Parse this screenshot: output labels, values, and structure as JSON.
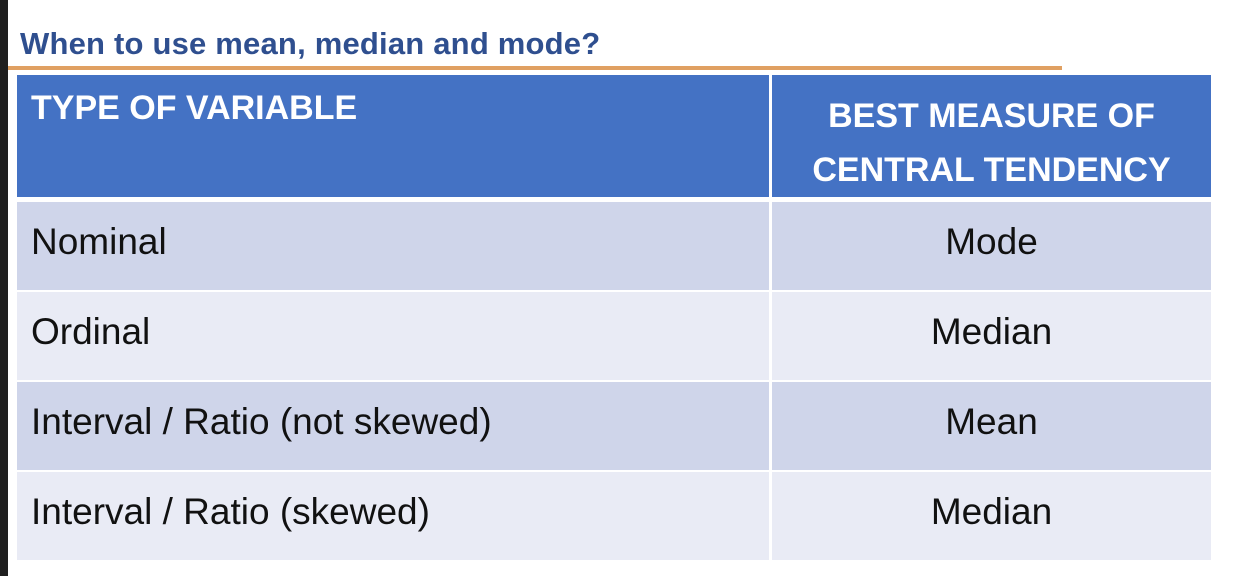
{
  "title": "When to use mean, median and mode?",
  "colors": {
    "title": "#2f4f8f",
    "rule": "#e0a062",
    "header_bg": "#4472c4",
    "row_dark": "#cfd5ea",
    "row_light": "#e9ebf5"
  },
  "table": {
    "headers": {
      "variable_type": "TYPE OF VARIABLE",
      "best_measure_line1": "BEST MEASURE OF",
      "best_measure_line2": "CENTRAL TENDENCY"
    },
    "rows": [
      {
        "variable_type": "Nominal",
        "best_measure": "Mode"
      },
      {
        "variable_type": "Ordinal",
        "best_measure": "Median"
      },
      {
        "variable_type": "Interval / Ratio (not skewed)",
        "best_measure": "Mean"
      },
      {
        "variable_type": "Interval / Ratio (skewed)",
        "best_measure": "Median"
      }
    ]
  }
}
